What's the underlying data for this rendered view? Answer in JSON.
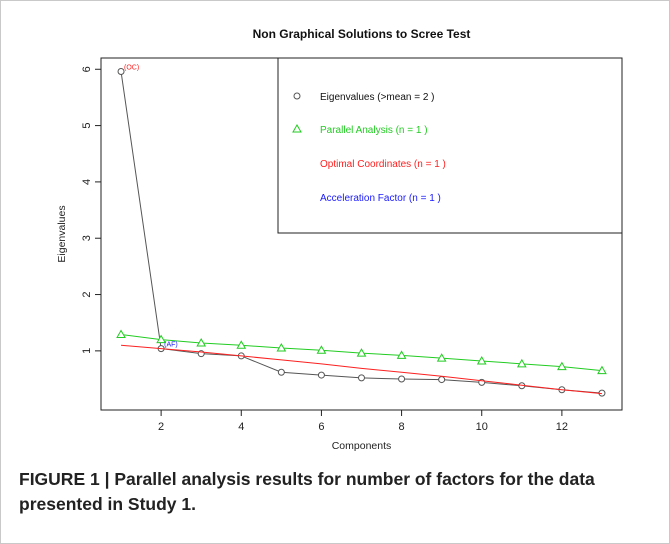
{
  "caption": "FIGURE 1 | Parallel analysis results for number of factors for the data presented in Study 1.",
  "chart_data": {
    "type": "line",
    "title": "Non Graphical Solutions to Scree Test",
    "xlabel": "Components",
    "ylabel": "Eigenvalues",
    "xlim": [
      0.5,
      13.5
    ],
    "ylim": [
      -0.05,
      6.2
    ],
    "xticks": [
      2,
      4,
      6,
      8,
      10,
      12
    ],
    "yticks": [
      1,
      2,
      3,
      4,
      5,
      6
    ],
    "grid": false,
    "legend_position": "top-right",
    "series": [
      {
        "name": "Eigenvalues (>mean  =  2 )",
        "color": "#555555",
        "marker": "circle",
        "x": [
          1,
          2,
          3,
          4,
          5,
          6,
          7,
          8,
          9,
          10,
          11,
          12,
          13
        ],
        "values": [
          5.96,
          1.04,
          0.95,
          0.91,
          0.62,
          0.57,
          0.52,
          0.5,
          0.49,
          0.44,
          0.38,
          0.31,
          0.25
        ]
      },
      {
        "name": "Parallel Analysis (n =  1 )",
        "color": "#22cc22",
        "marker": "triangle",
        "x": [
          1,
          2,
          3,
          4,
          5,
          6,
          7,
          8,
          9,
          10,
          11,
          12,
          13
        ],
        "values": [
          1.29,
          1.2,
          1.14,
          1.1,
          1.05,
          1.01,
          0.96,
          0.92,
          0.87,
          0.82,
          0.77,
          0.72,
          0.65
        ]
      },
      {
        "name": "Optimal Coordinates (n =  1 )",
        "color": "#ff2020",
        "marker": "none",
        "x": [
          1,
          2,
          3,
          4,
          5,
          6,
          7,
          8,
          9,
          10,
          11,
          12,
          13
        ],
        "values": [
          1.1,
          1.04,
          0.98,
          0.91,
          0.84,
          0.77,
          0.69,
          0.62,
          0.55,
          0.47,
          0.39,
          0.31,
          0.24
        ]
      },
      {
        "name": "Acceleration Factor (n =  1 )",
        "color": "#1a1aff",
        "marker": "none",
        "x": [],
        "values": []
      }
    ],
    "annotations": [
      {
        "text": "(OC)",
        "x": 1,
        "y": 5.96,
        "color": "#ff2020"
      },
      {
        "text": "(AF)",
        "x": 2,
        "y": 1.04,
        "color": "#1a1aff"
      }
    ]
  }
}
